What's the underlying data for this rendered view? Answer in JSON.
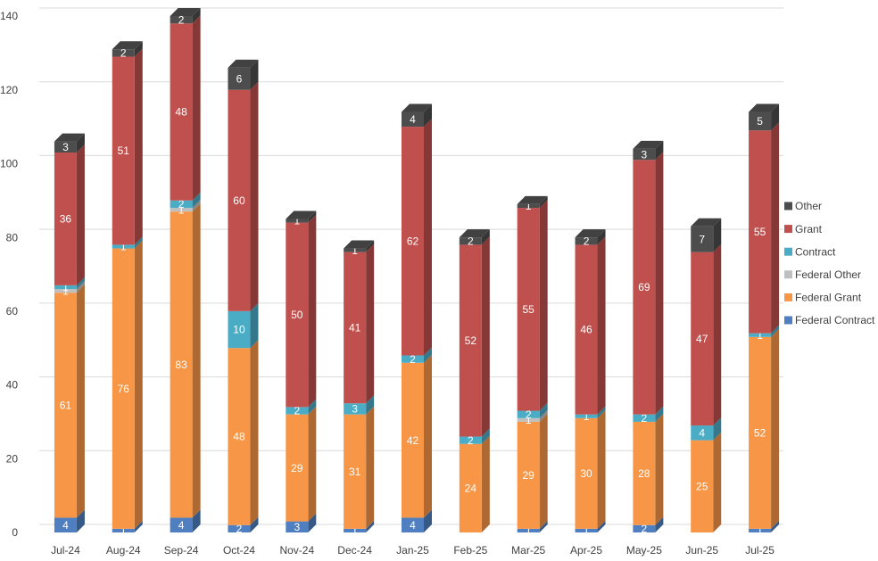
{
  "chart_data": {
    "type": "bar3d-stacked",
    "categories": [
      "Jul-24",
      "Aug-24",
      "Sep-24",
      "Oct-24",
      "Nov-24",
      "Dec-24",
      "Jan-25",
      "Feb-25",
      "Mar-25",
      "Apr-25",
      "May-25",
      "Jun-25",
      "Jul-25"
    ],
    "series": [
      {
        "name": "Federal Contract",
        "color": "#4f7fc0",
        "values": [
          4,
          1,
          4,
          2,
          3,
          1,
          4,
          null,
          1,
          1,
          2,
          null,
          1
        ]
      },
      {
        "name": "Federal Grant",
        "color": "#f79646",
        "values": [
          61,
          76,
          83,
          48,
          29,
          31,
          42,
          24,
          29,
          30,
          28,
          25,
          52
        ]
      },
      {
        "name": "Federal Other",
        "color": "#bfbfbf",
        "values": [
          1,
          null,
          1,
          null,
          null,
          null,
          null,
          null,
          1,
          null,
          null,
          null,
          null
        ]
      },
      {
        "name": "Contract",
        "color": "#4bacc6",
        "values": [
          1,
          1,
          2,
          10,
          2,
          3,
          2,
          2,
          2,
          1,
          2,
          4,
          1
        ]
      },
      {
        "name": "Grant",
        "color": "#c0504d",
        "values": [
          36,
          51,
          48,
          60,
          50,
          41,
          62,
          52,
          55,
          46,
          69,
          47,
          55
        ]
      },
      {
        "name": "Other",
        "color": "#4d4d4d",
        "values": [
          3,
          2,
          2,
          6,
          1,
          1,
          4,
          2,
          1,
          2,
          3,
          7,
          5
        ]
      }
    ],
    "ylim": [
      0,
      140
    ],
    "yticks": [
      0,
      20,
      40,
      60,
      80,
      100,
      120,
      140
    ],
    "grid": true,
    "legend": "right"
  }
}
